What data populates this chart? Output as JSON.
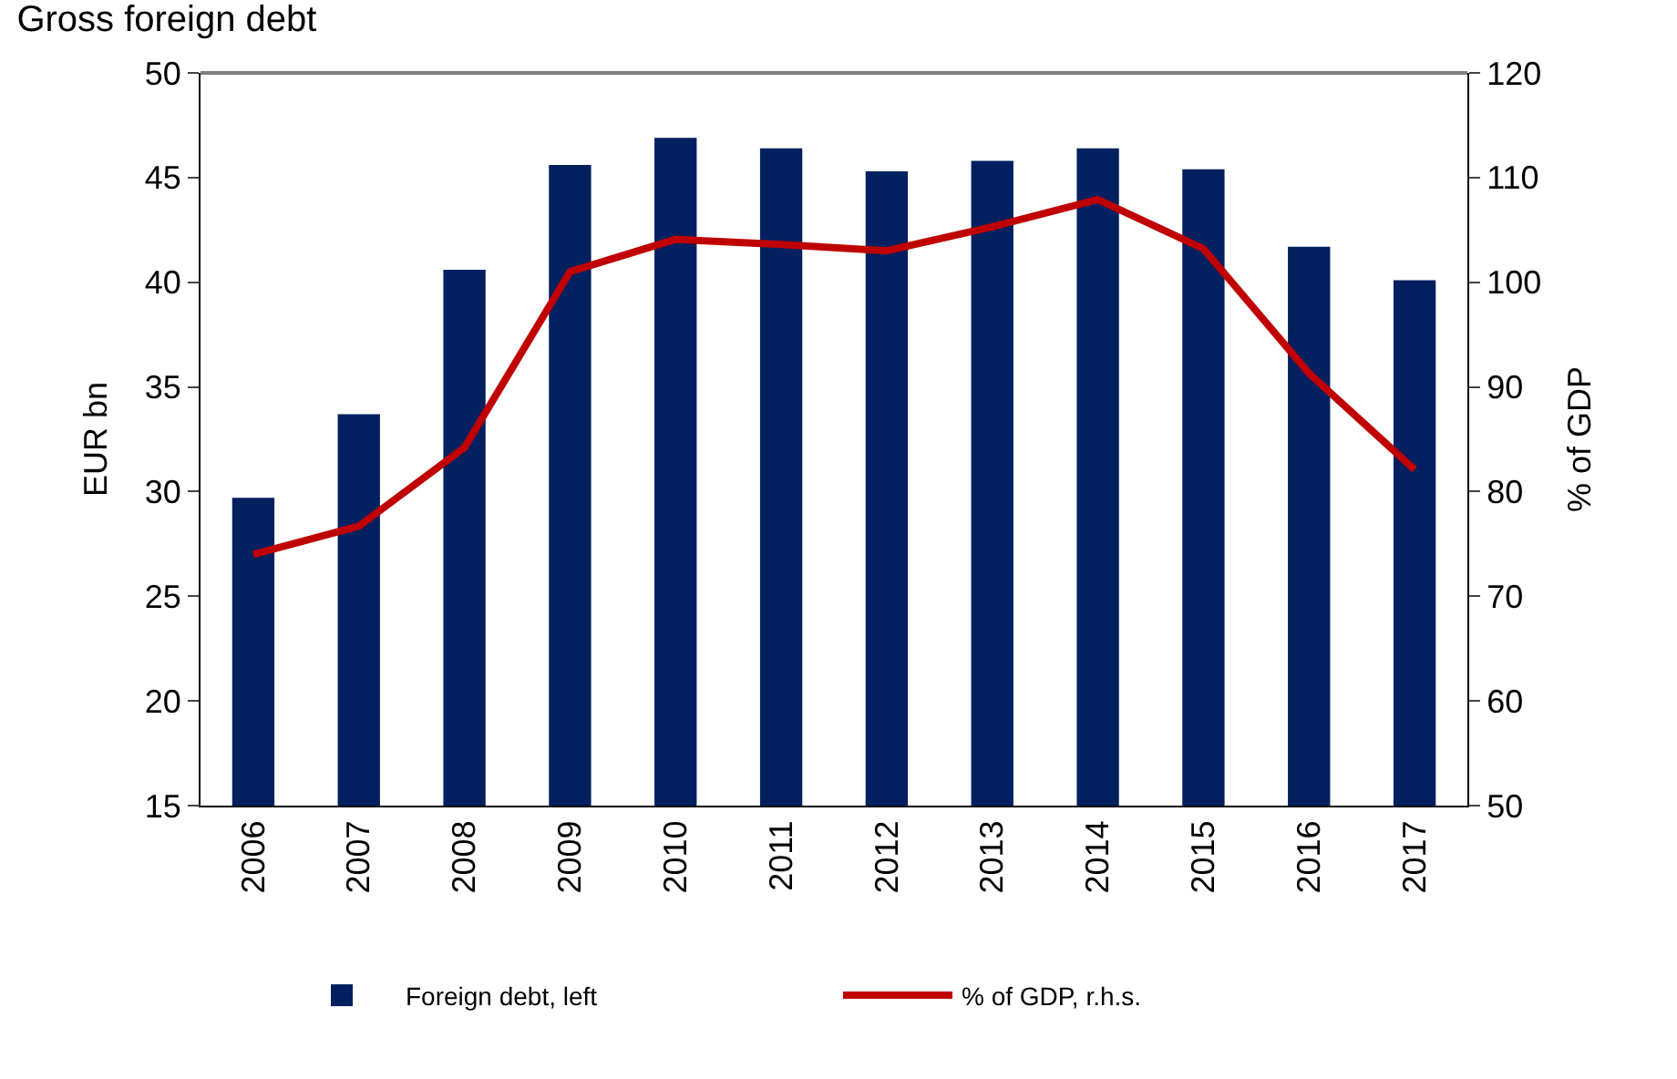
{
  "chart_data": {
    "type": "bar",
    "title": "Gross foreign debt",
    "categories": [
      "2006",
      "2007",
      "2008",
      "2009",
      "2010",
      "2011",
      "2012",
      "2013",
      "2014",
      "2015",
      "2016",
      "2017"
    ],
    "series": [
      {
        "name": "Foreign debt, left",
        "color": "#02205f",
        "values": [
          29.7,
          33.7,
          40.6,
          45.6,
          46.9,
          46.4,
          45.3,
          45.8,
          46.4,
          45.4,
          41.7,
          40.1
        ]
      },
      {
        "name": "% of GDP, r.h.s.",
        "type": "line",
        "axis": "y2",
        "color": "#c00000",
        "values": [
          74,
          76.7,
          84.2,
          101,
          104.1,
          103.6,
          103,
          105.3,
          107.9,
          103.2,
          91.3,
          82.1
        ]
      }
    ],
    "ylabel": "EUR bn",
    "y2label": "% of GDP",
    "ylim": [
      15,
      50
    ],
    "yticks": [
      15,
      20,
      25,
      30,
      35,
      40,
      45,
      50
    ],
    "y2lim": [
      50,
      120
    ],
    "y2ticks": [
      50,
      60,
      70,
      80,
      90,
      100,
      110,
      120
    ],
    "legend": "bottom",
    "marker": "none",
    "line_style": "solid"
  }
}
